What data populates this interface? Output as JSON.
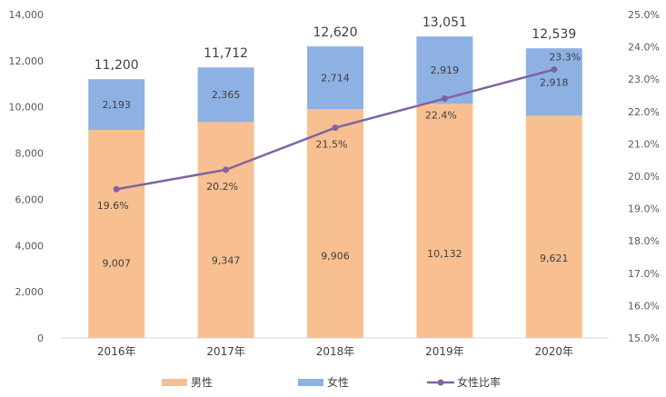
{
  "chart_data": {
    "type": "bar",
    "stacked": true,
    "categories": [
      "2016年",
      "2017年",
      "2018年",
      "2019年",
      "2020年"
    ],
    "series": [
      {
        "name": "男性",
        "values": [
          9007,
          9347,
          9906,
          10132,
          9621
        ],
        "labels": [
          "9,007",
          "9,347",
          "9,906",
          "10,132",
          "9,621"
        ],
        "color": "#F8C090"
      },
      {
        "name": "女性",
        "values": [
          2193,
          2365,
          2714,
          2919,
          2918
        ],
        "labels": [
          "2,193",
          "2,365",
          "2,714",
          "2,919",
          "2,918"
        ],
        "color": "#8EB1E3"
      }
    ],
    "totals": [
      11200,
      11712,
      12620,
      13051,
      12539
    ],
    "total_labels": [
      "11,200",
      "11,712",
      "12,620",
      "13,051",
      "12,539"
    ],
    "line_series": {
      "name": "女性比率",
      "axis": "right",
      "values": [
        19.6,
        20.2,
        21.5,
        22.4,
        23.3
      ],
      "labels": [
        "19.6%",
        "20.2%",
        "21.5%",
        "22.4%",
        "23.3%"
      ],
      "color": "#8064A2"
    },
    "y_left": {
      "min": 0,
      "max": 14000,
      "step": 2000,
      "tick_labels": [
        "0",
        "2,000",
        "4,000",
        "6,000",
        "8,000",
        "10,000",
        "12,000",
        "14,000"
      ]
    },
    "y_right": {
      "min": 15.0,
      "max": 25.0,
      "step": 1.0,
      "tick_labels": [
        "15.0%",
        "16.0%",
        "17.0%",
        "18.0%",
        "19.0%",
        "20.0%",
        "21.0%",
        "22.0%",
        "23.0%",
        "24.0%",
        "25.0%"
      ]
    },
    "grid": false,
    "legend": {
      "position": "bottom",
      "items": [
        "男性",
        "女性",
        "女性比率"
      ]
    }
  }
}
